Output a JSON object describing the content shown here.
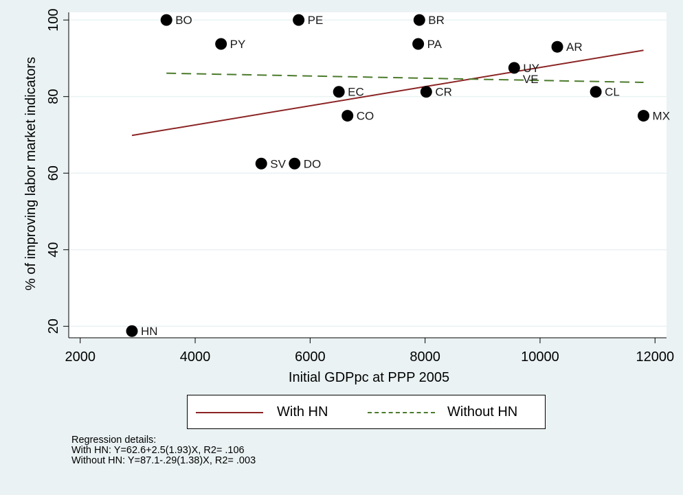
{
  "chart_data": {
    "type": "scatter",
    "xlabel": "Initial GDPpc at PPP 2005",
    "ylabel": "% of improving labor market indicators",
    "xlim": [
      1800,
      12200
    ],
    "ylim": [
      17,
      102
    ],
    "xticks": [
      2000,
      4000,
      6000,
      8000,
      10000,
      12000
    ],
    "yticks": [
      20,
      40,
      60,
      80,
      100
    ],
    "grid": "horizontal",
    "points": [
      {
        "label": "BO",
        "x": 3500,
        "y": 100
      },
      {
        "label": "PE",
        "x": 5800,
        "y": 100
      },
      {
        "label": "BR",
        "x": 7900,
        "y": 100
      },
      {
        "label": "PY",
        "x": 4450,
        "y": 93.75
      },
      {
        "label": "PA",
        "x": 7880,
        "y": 93.75
      },
      {
        "label": "AR",
        "x": 10300,
        "y": 93
      },
      {
        "label": "UY",
        "x": 9550,
        "y": 87.5
      },
      {
        "label": "VE",
        "x": null,
        "y": null
      },
      {
        "label": "EC",
        "x": 6500,
        "y": 81.25
      },
      {
        "label": "CR",
        "x": 8020,
        "y": 81.25
      },
      {
        "label": "CL",
        "x": 10970,
        "y": 81.25
      },
      {
        "label": "CO",
        "x": 6650,
        "y": 75
      },
      {
        "label": "MX",
        "x": 11800,
        "y": 75
      },
      {
        "label": "SV",
        "x": 5150,
        "y": 62.5
      },
      {
        "label": "DO",
        "x": 5730,
        "y": 62.5
      },
      {
        "label": "HN",
        "x": 2900,
        "y": 18.75
      }
    ],
    "ve_label_anchor": {
      "x": 9700,
      "y": 83.5
    },
    "series": [
      {
        "name": "With HN",
        "type": "line",
        "style": "solid",
        "color": "#8b2323",
        "x": [
          2900,
          11800
        ],
        "y": [
          69.85,
          92.1
        ]
      },
      {
        "name": "Without HN",
        "type": "line",
        "style": "dashed",
        "color": "#4a7a2a",
        "x": [
          3500,
          11800
        ],
        "y": [
          86.1,
          83.7
        ]
      }
    ],
    "legend": {
      "position": "bottom",
      "items": [
        "With HN",
        "Without HN"
      ]
    },
    "notes": [
      "Regression details:",
      "With HN:  Y=62.6+2.5(1.93)X, R2= .106",
      "Without HN: Y=87.1-.29(1.38)X, R2= .003"
    ]
  },
  "colors": {
    "background": "#eaf2f3",
    "plot_background": "#ffffff",
    "marker": "#000000",
    "with_hn": "#8b2323",
    "without_hn": "#4a7a2a"
  }
}
